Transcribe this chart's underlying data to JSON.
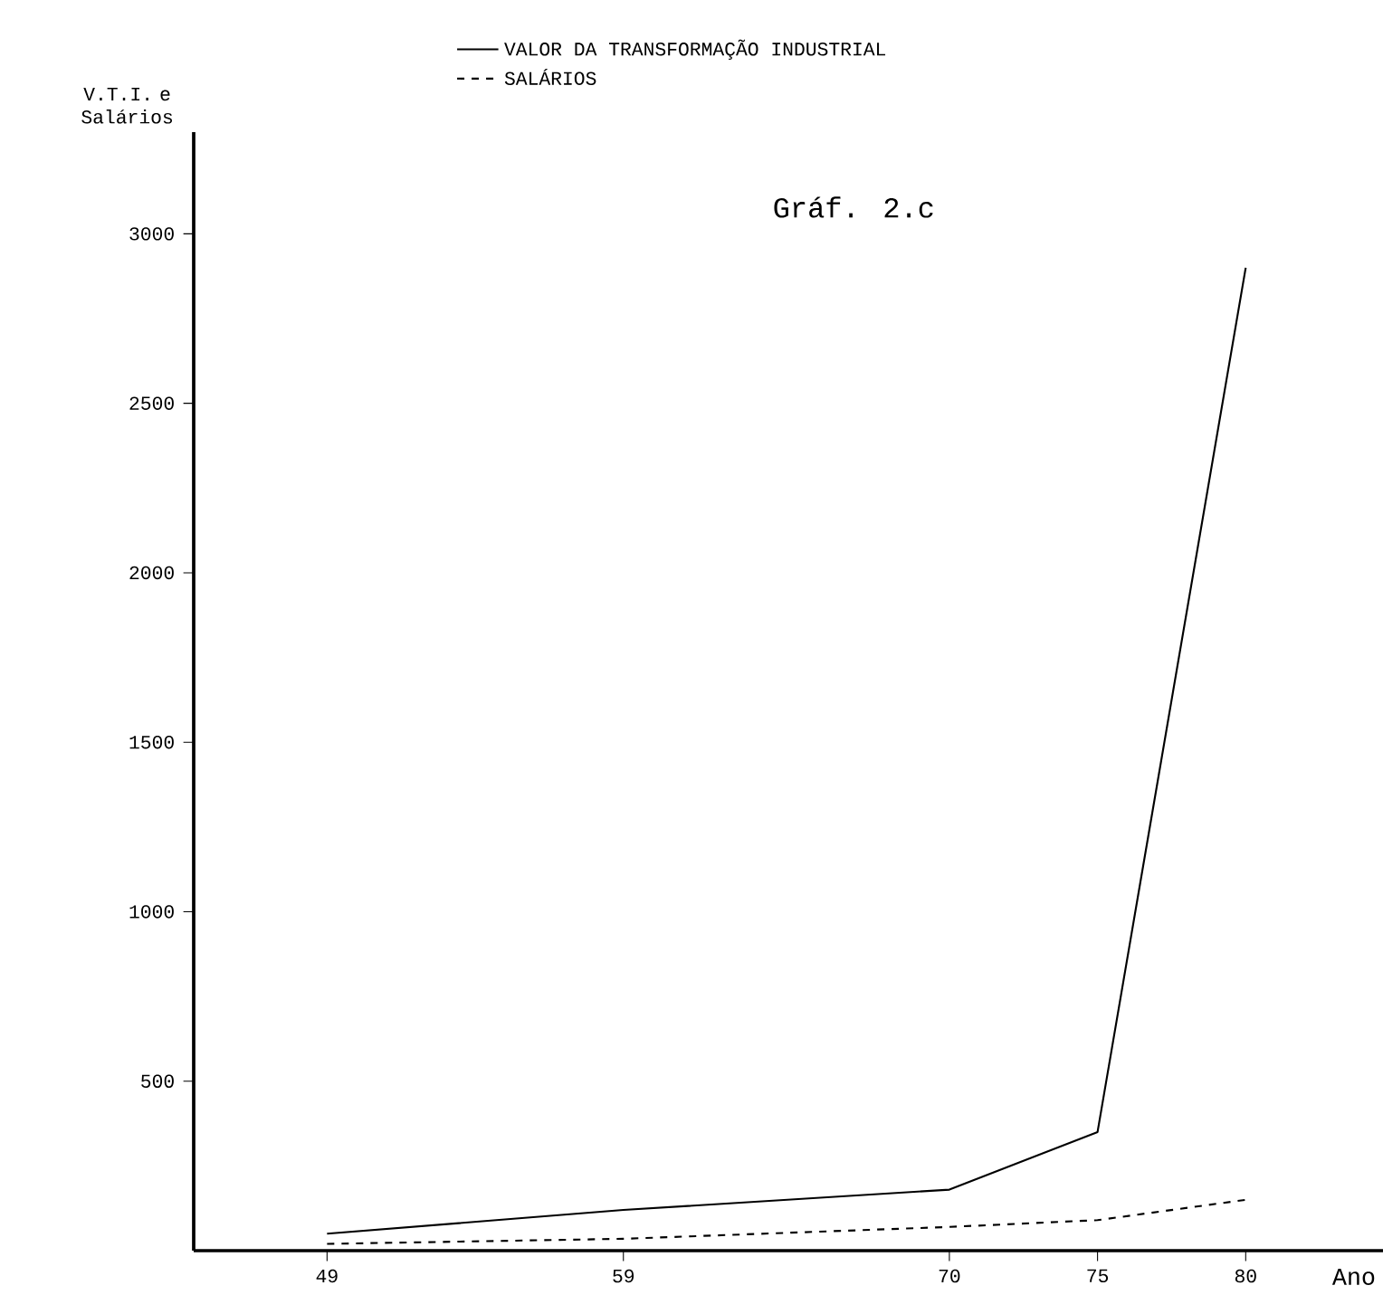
{
  "chart_data": {
    "type": "line",
    "title": "Gráf. 2.c",
    "xlabel": "Ano",
    "ylabel": "V.T.I. e Salários",
    "x": [
      49,
      59,
      70,
      75,
      80
    ],
    "series": [
      {
        "name": "VALOR DA TRANSFORMAÇÃO INDUSTRIAL",
        "color": "#000000",
        "line_style": "solid",
        "values": [
          50,
          120,
          180,
          350,
          2900
        ]
      },
      {
        "name": "SALÁRIOS",
        "color": "#000000",
        "line_style": "dashed",
        "values": [
          20,
          35,
          70,
          90,
          150
        ]
      }
    ],
    "xlim": [
      44.5,
      85
    ],
    "ylim": [
      0,
      3300
    ],
    "xticks": [
      49,
      59,
      70,
      75,
      80
    ],
    "yticks": [
      500,
      1000,
      1500,
      2000,
      2500,
      3000
    ],
    "legend": "top",
    "marker": "none"
  }
}
